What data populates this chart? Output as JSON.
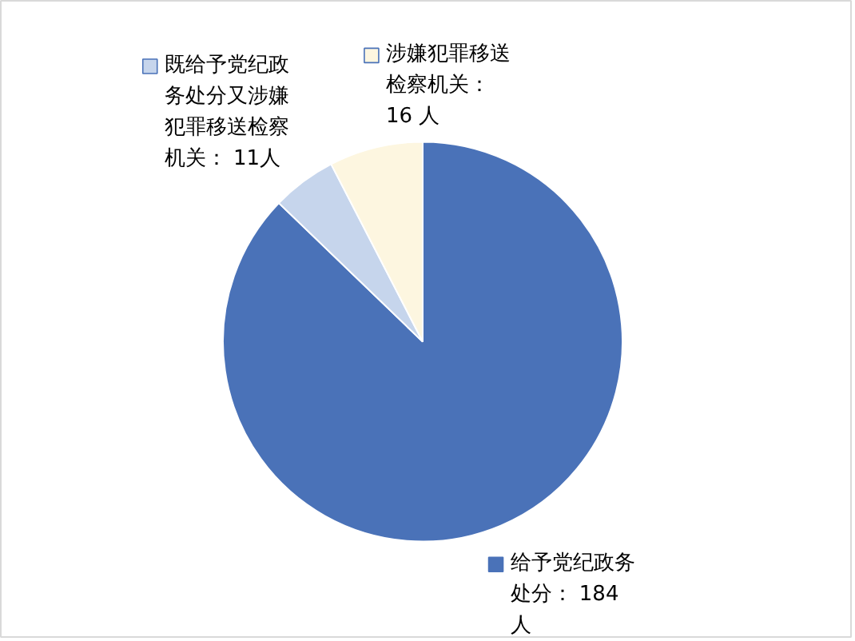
{
  "chart_data": {
    "type": "pie",
    "categories": [
      "给予党纪政务处分",
      "既给予党纪政务处分又涉嫌犯罪移送检察机关",
      "涉嫌犯罪移送检察机关"
    ],
    "values": [
      184,
      11,
      16
    ],
    "colors": [
      "#4a72b8",
      "#c6d5ec",
      "#fdf6e0"
    ],
    "value_labels": [
      "： 184人",
      "： 11人",
      "：16 人"
    ],
    "legend": "top"
  }
}
